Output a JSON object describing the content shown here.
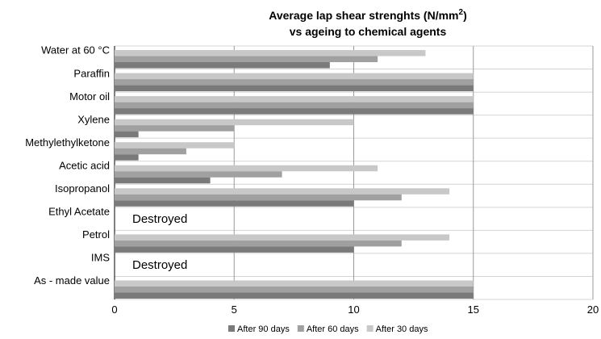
{
  "chart_data": {
    "type": "bar",
    "orientation": "horizontal",
    "title_line1": "Average lap shear strenghts  (N/mm",
    "title_sup": "2",
    "title_line1_end": ")",
    "title_line2": "vs ageing to chemical agents",
    "categories": [
      "Water at 60 °C",
      "Paraffin",
      "Motor oil",
      "Xylene",
      "Methylethylketone",
      "Acetic acid",
      "Isopropanol",
      "Ethyl Acetate",
      "Petrol",
      "IMS",
      "As - made value"
    ],
    "series": [
      {
        "name": "After 30 days",
        "values": [
          13,
          15,
          15,
          10,
          5,
          11,
          14,
          null,
          14,
          null,
          15
        ],
        "color": "#c8c8c8"
      },
      {
        "name": "After 60 days",
        "values": [
          11,
          15,
          15,
          5,
          3,
          7,
          12,
          null,
          12,
          null,
          15
        ],
        "color": "#a0a0a0"
      },
      {
        "name": "After 90 days",
        "values": [
          9,
          15,
          15,
          1,
          1,
          4,
          10,
          null,
          10,
          null,
          15
        ],
        "color": "#7a7a7a"
      }
    ],
    "legend_order": [
      "After 90 days",
      "After 60 days",
      "After 30 days"
    ],
    "annotations": [
      {
        "category": "Ethyl Acetate",
        "text": "Destroyed"
      },
      {
        "category": "IMS",
        "text": "Destroyed"
      }
    ],
    "xlim": [
      0,
      20
    ],
    "xticks": [
      "0",
      "5",
      "10",
      "15",
      "20"
    ],
    "grid": true,
    "legend_position": "bottom"
  }
}
